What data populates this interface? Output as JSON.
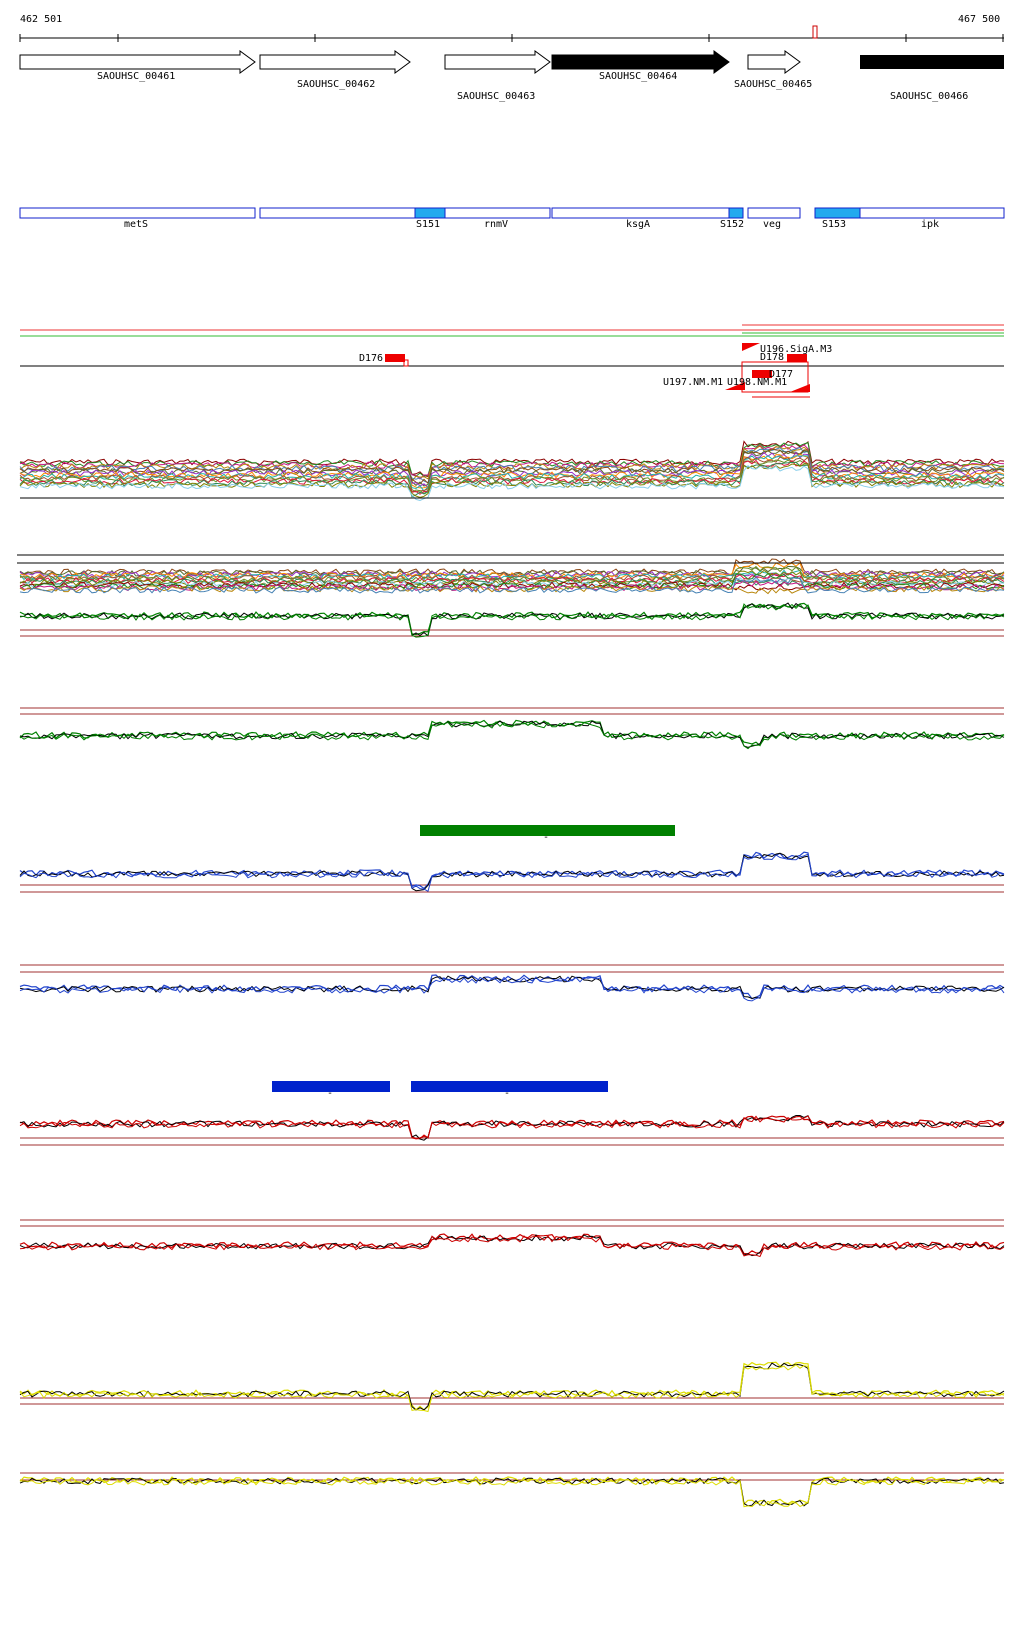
{
  "ruler": {
    "start_label": "462 501",
    "end_label": "467 500"
  },
  "genes": [
    {
      "name": "SAOUHSC_00461",
      "strand": "+",
      "filled": false
    },
    {
      "name": "SAOUHSC_00462",
      "strand": "+",
      "filled": false
    },
    {
      "name": "SAOUHSC_00463",
      "strand": "+",
      "filled": false
    },
    {
      "name": "SAOUHSC_00464",
      "strand": "+",
      "filled": true
    },
    {
      "name": "SAOUHSC_00465",
      "strand": "+",
      "filled": false
    },
    {
      "name": "SAOUHSC_00466",
      "strand": "+",
      "filled": true
    }
  ],
  "gene_names": [
    {
      "name": "metS",
      "kind": "gene"
    },
    {
      "name": "",
      "kind": "gene"
    },
    {
      "name": "S151",
      "kind": "srna"
    },
    {
      "name": "rnmV",
      "kind": "gene"
    },
    {
      "name": "ksgA",
      "kind": "gene"
    },
    {
      "name": "S152",
      "kind": "srna"
    },
    {
      "name": "veg",
      "kind": "gene"
    },
    {
      "name": "S153",
      "kind": "srna"
    },
    {
      "name": "ipk",
      "kind": "gene"
    }
  ],
  "features": [
    {
      "name": "D176"
    },
    {
      "name": "U196.SigA.M3"
    },
    {
      "name": "D178"
    },
    {
      "name": "D177"
    },
    {
      "name": "U197.NM.M1"
    },
    {
      "name": "U198.NM.M1"
    }
  ],
  "segments": [
    {
      "label": "-",
      "color": "#008000"
    },
    {
      "label": "-",
      "color": "#0022cc"
    },
    {
      "label": "-",
      "color": "#0022cc"
    }
  ],
  "colors": {
    "multi_tracks": [
      "#8b0000",
      "#228b22",
      "#c71585",
      "#b8860b",
      "#4682b4",
      "#8b4513",
      "#556b2f",
      "#9932cc",
      "#ff8c00",
      "#20b2aa",
      "#a0522d",
      "#6b8e23",
      "#dc143c",
      "#2e8b57",
      "#808000",
      "#87ceeb"
    ],
    "green": "#008000",
    "blue": "#2244cc",
    "red": "#cc0000",
    "yellow": "#dddd00",
    "black": "#000000",
    "hline": "#a03030"
  }
}
